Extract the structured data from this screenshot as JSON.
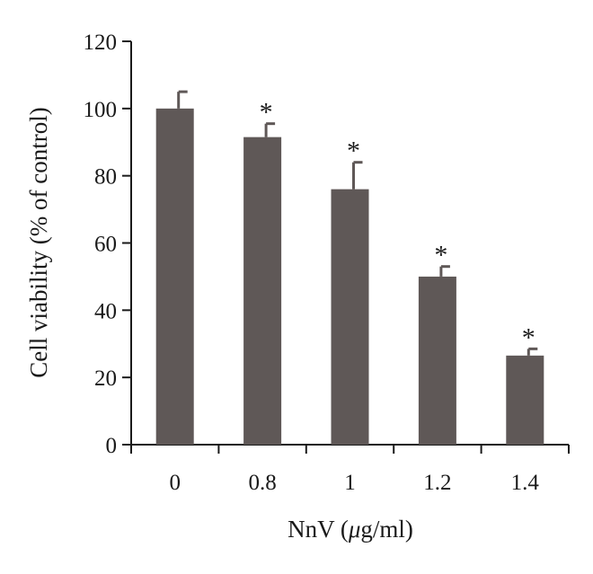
{
  "chart_data": {
    "type": "bar",
    "categories": [
      "0",
      "0.8",
      "1",
      "1.2",
      "1.4"
    ],
    "values": [
      100,
      91.5,
      76,
      50,
      26.5
    ],
    "errors": [
      5,
      4,
      8,
      3,
      2
    ],
    "significance": [
      "",
      "*",
      "*",
      "*",
      "*"
    ],
    "xlabel_prefix": "NnV (",
    "xlabel_mu": "μ",
    "xlabel_suffix": "g/ml)",
    "ylabel": "Cell viability (% of control)",
    "ylim": [
      0,
      120
    ],
    "yticks": [
      0,
      20,
      40,
      60,
      80,
      100,
      120
    ],
    "grid": false,
    "legend": "none",
    "colors": {
      "bar": "#5f5857",
      "axis": "#1a1a1a"
    }
  }
}
